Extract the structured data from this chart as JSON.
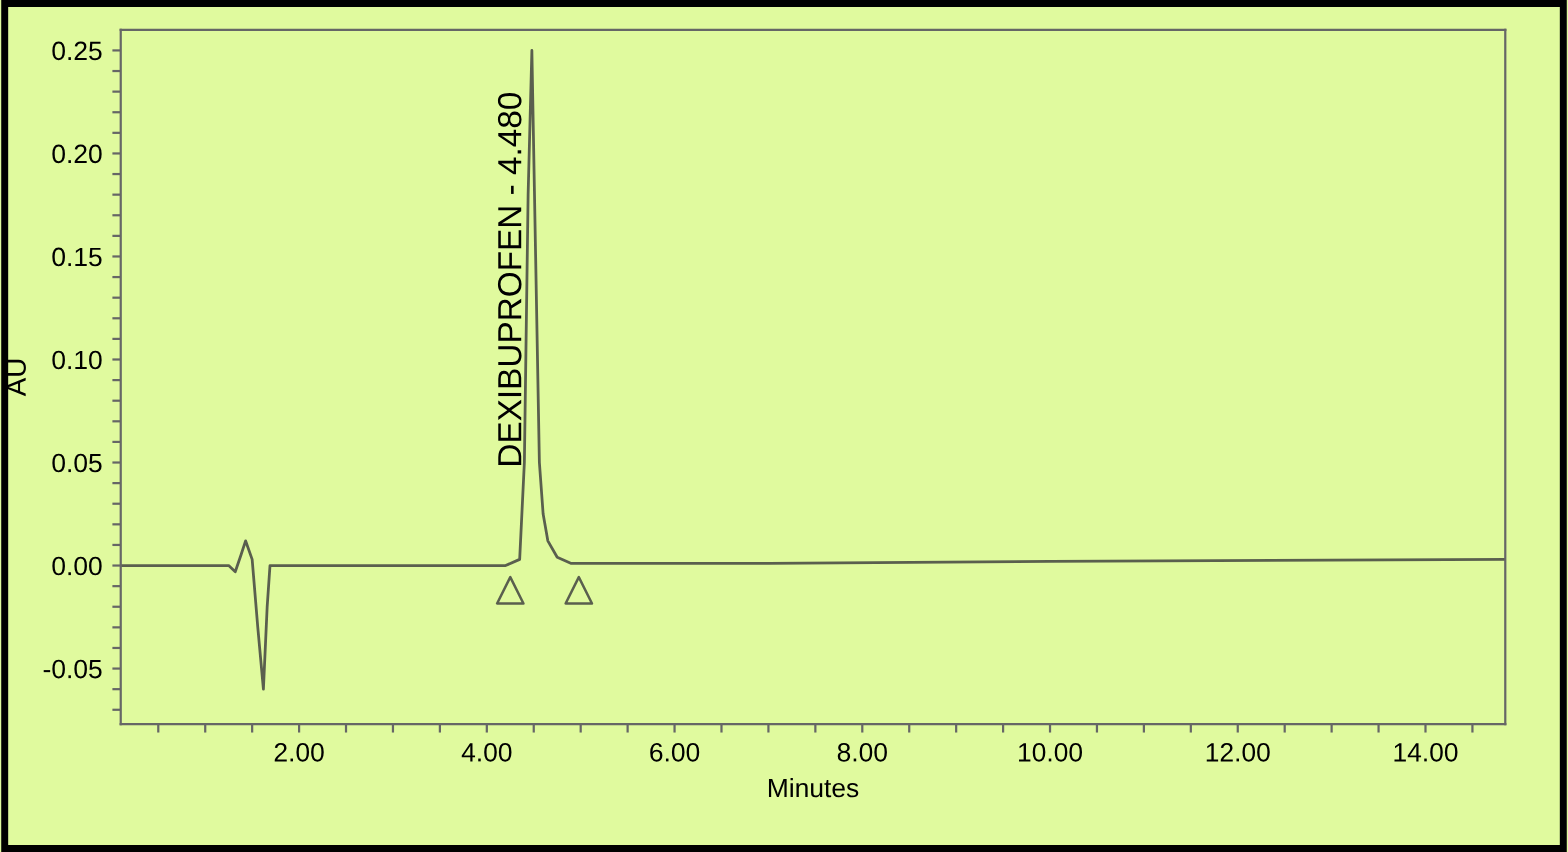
{
  "chart_data": {
    "type": "line",
    "xlabel": "Minutes",
    "ylabel": "AU",
    "xlim": [
      0.1,
      14.85
    ],
    "ylim": [
      -0.077,
      0.26
    ],
    "xticks": [
      {
        "value": 0.5,
        "label": null
      },
      {
        "value": 1.0,
        "label": null
      },
      {
        "value": 1.5,
        "label": null
      },
      {
        "value": 2.0,
        "label": "2.00"
      },
      {
        "value": 2.5,
        "label": null
      },
      {
        "value": 3.0,
        "label": null
      },
      {
        "value": 3.5,
        "label": null
      },
      {
        "value": 4.0,
        "label": "4.00"
      },
      {
        "value": 4.5,
        "label": null
      },
      {
        "value": 5.0,
        "label": null
      },
      {
        "value": 5.5,
        "label": null
      },
      {
        "value": 6.0,
        "label": "6.00"
      },
      {
        "value": 6.5,
        "label": null
      },
      {
        "value": 7.0,
        "label": null
      },
      {
        "value": 7.5,
        "label": null
      },
      {
        "value": 8.0,
        "label": "8.00"
      },
      {
        "value": 8.5,
        "label": null
      },
      {
        "value": 9.0,
        "label": null
      },
      {
        "value": 9.5,
        "label": null
      },
      {
        "value": 10.0,
        "label": "10.00"
      },
      {
        "value": 10.5,
        "label": null
      },
      {
        "value": 11.0,
        "label": null
      },
      {
        "value": 11.5,
        "label": null
      },
      {
        "value": 12.0,
        "label": "12.00"
      },
      {
        "value": 12.5,
        "label": null
      },
      {
        "value": 13.0,
        "label": null
      },
      {
        "value": 13.5,
        "label": null
      },
      {
        "value": 14.0,
        "label": "14.00"
      },
      {
        "value": 14.5,
        "label": null
      }
    ],
    "yticks": [
      {
        "value": -0.07,
        "label": null
      },
      {
        "value": -0.06,
        "label": null
      },
      {
        "value": -0.05,
        "label": "-0.05"
      },
      {
        "value": -0.04,
        "label": null
      },
      {
        "value": -0.03,
        "label": null
      },
      {
        "value": -0.02,
        "label": null
      },
      {
        "value": -0.01,
        "label": null
      },
      {
        "value": 0.0,
        "label": "0.00"
      },
      {
        "value": 0.01,
        "label": null
      },
      {
        "value": 0.02,
        "label": null
      },
      {
        "value": 0.03,
        "label": null
      },
      {
        "value": 0.04,
        "label": null
      },
      {
        "value": 0.05,
        "label": "0.05"
      },
      {
        "value": 0.06,
        "label": null
      },
      {
        "value": 0.07,
        "label": null
      },
      {
        "value": 0.08,
        "label": null
      },
      {
        "value": 0.09,
        "label": null
      },
      {
        "value": 0.1,
        "label": "0.10"
      },
      {
        "value": 0.11,
        "label": null
      },
      {
        "value": 0.12,
        "label": null
      },
      {
        "value": 0.13,
        "label": null
      },
      {
        "value": 0.14,
        "label": null
      },
      {
        "value": 0.15,
        "label": "0.15"
      },
      {
        "value": 0.16,
        "label": null
      },
      {
        "value": 0.17,
        "label": null
      },
      {
        "value": 0.18,
        "label": null
      },
      {
        "value": 0.19,
        "label": null
      },
      {
        "value": 0.2,
        "label": "0.20"
      },
      {
        "value": 0.21,
        "label": null
      },
      {
        "value": 0.22,
        "label": null
      },
      {
        "value": 0.23,
        "label": null
      },
      {
        "value": 0.24,
        "label": null
      },
      {
        "value": 0.25,
        "label": "0.25"
      }
    ],
    "series": [
      {
        "color": "#5a5f4e",
        "x": [
          0.1,
          1.25,
          1.32,
          1.38,
          1.43,
          1.5,
          1.56,
          1.62,
          1.66,
          1.69,
          4.2,
          4.35,
          4.4,
          4.44,
          4.48,
          4.52,
          4.56,
          4.6,
          4.65,
          4.75,
          4.9,
          7.0,
          10.0,
          14.85
        ],
        "values": [
          0,
          0,
          -0.003,
          0.005,
          0.012,
          0.003,
          -0.03,
          -0.06,
          -0.02,
          0,
          0,
          0.003,
          0.05,
          0.18,
          0.25,
          0.15,
          0.05,
          0.025,
          0.012,
          0.004,
          0.001,
          0.001,
          0.002,
          0.003
        ]
      },
      {
        "type": "scatter",
        "color": "#5a5f4e",
        "marker": "triangle",
        "x": [
          4.25,
          4.98
        ],
        "values": [
          -0.012,
          -0.012
        ]
      }
    ],
    "annotations": [
      {
        "text": "DEXIBUPROFEN - 4.480",
        "x": 4.48,
        "y": 0.25
      }
    ],
    "grid": false,
    "legend": false
  }
}
